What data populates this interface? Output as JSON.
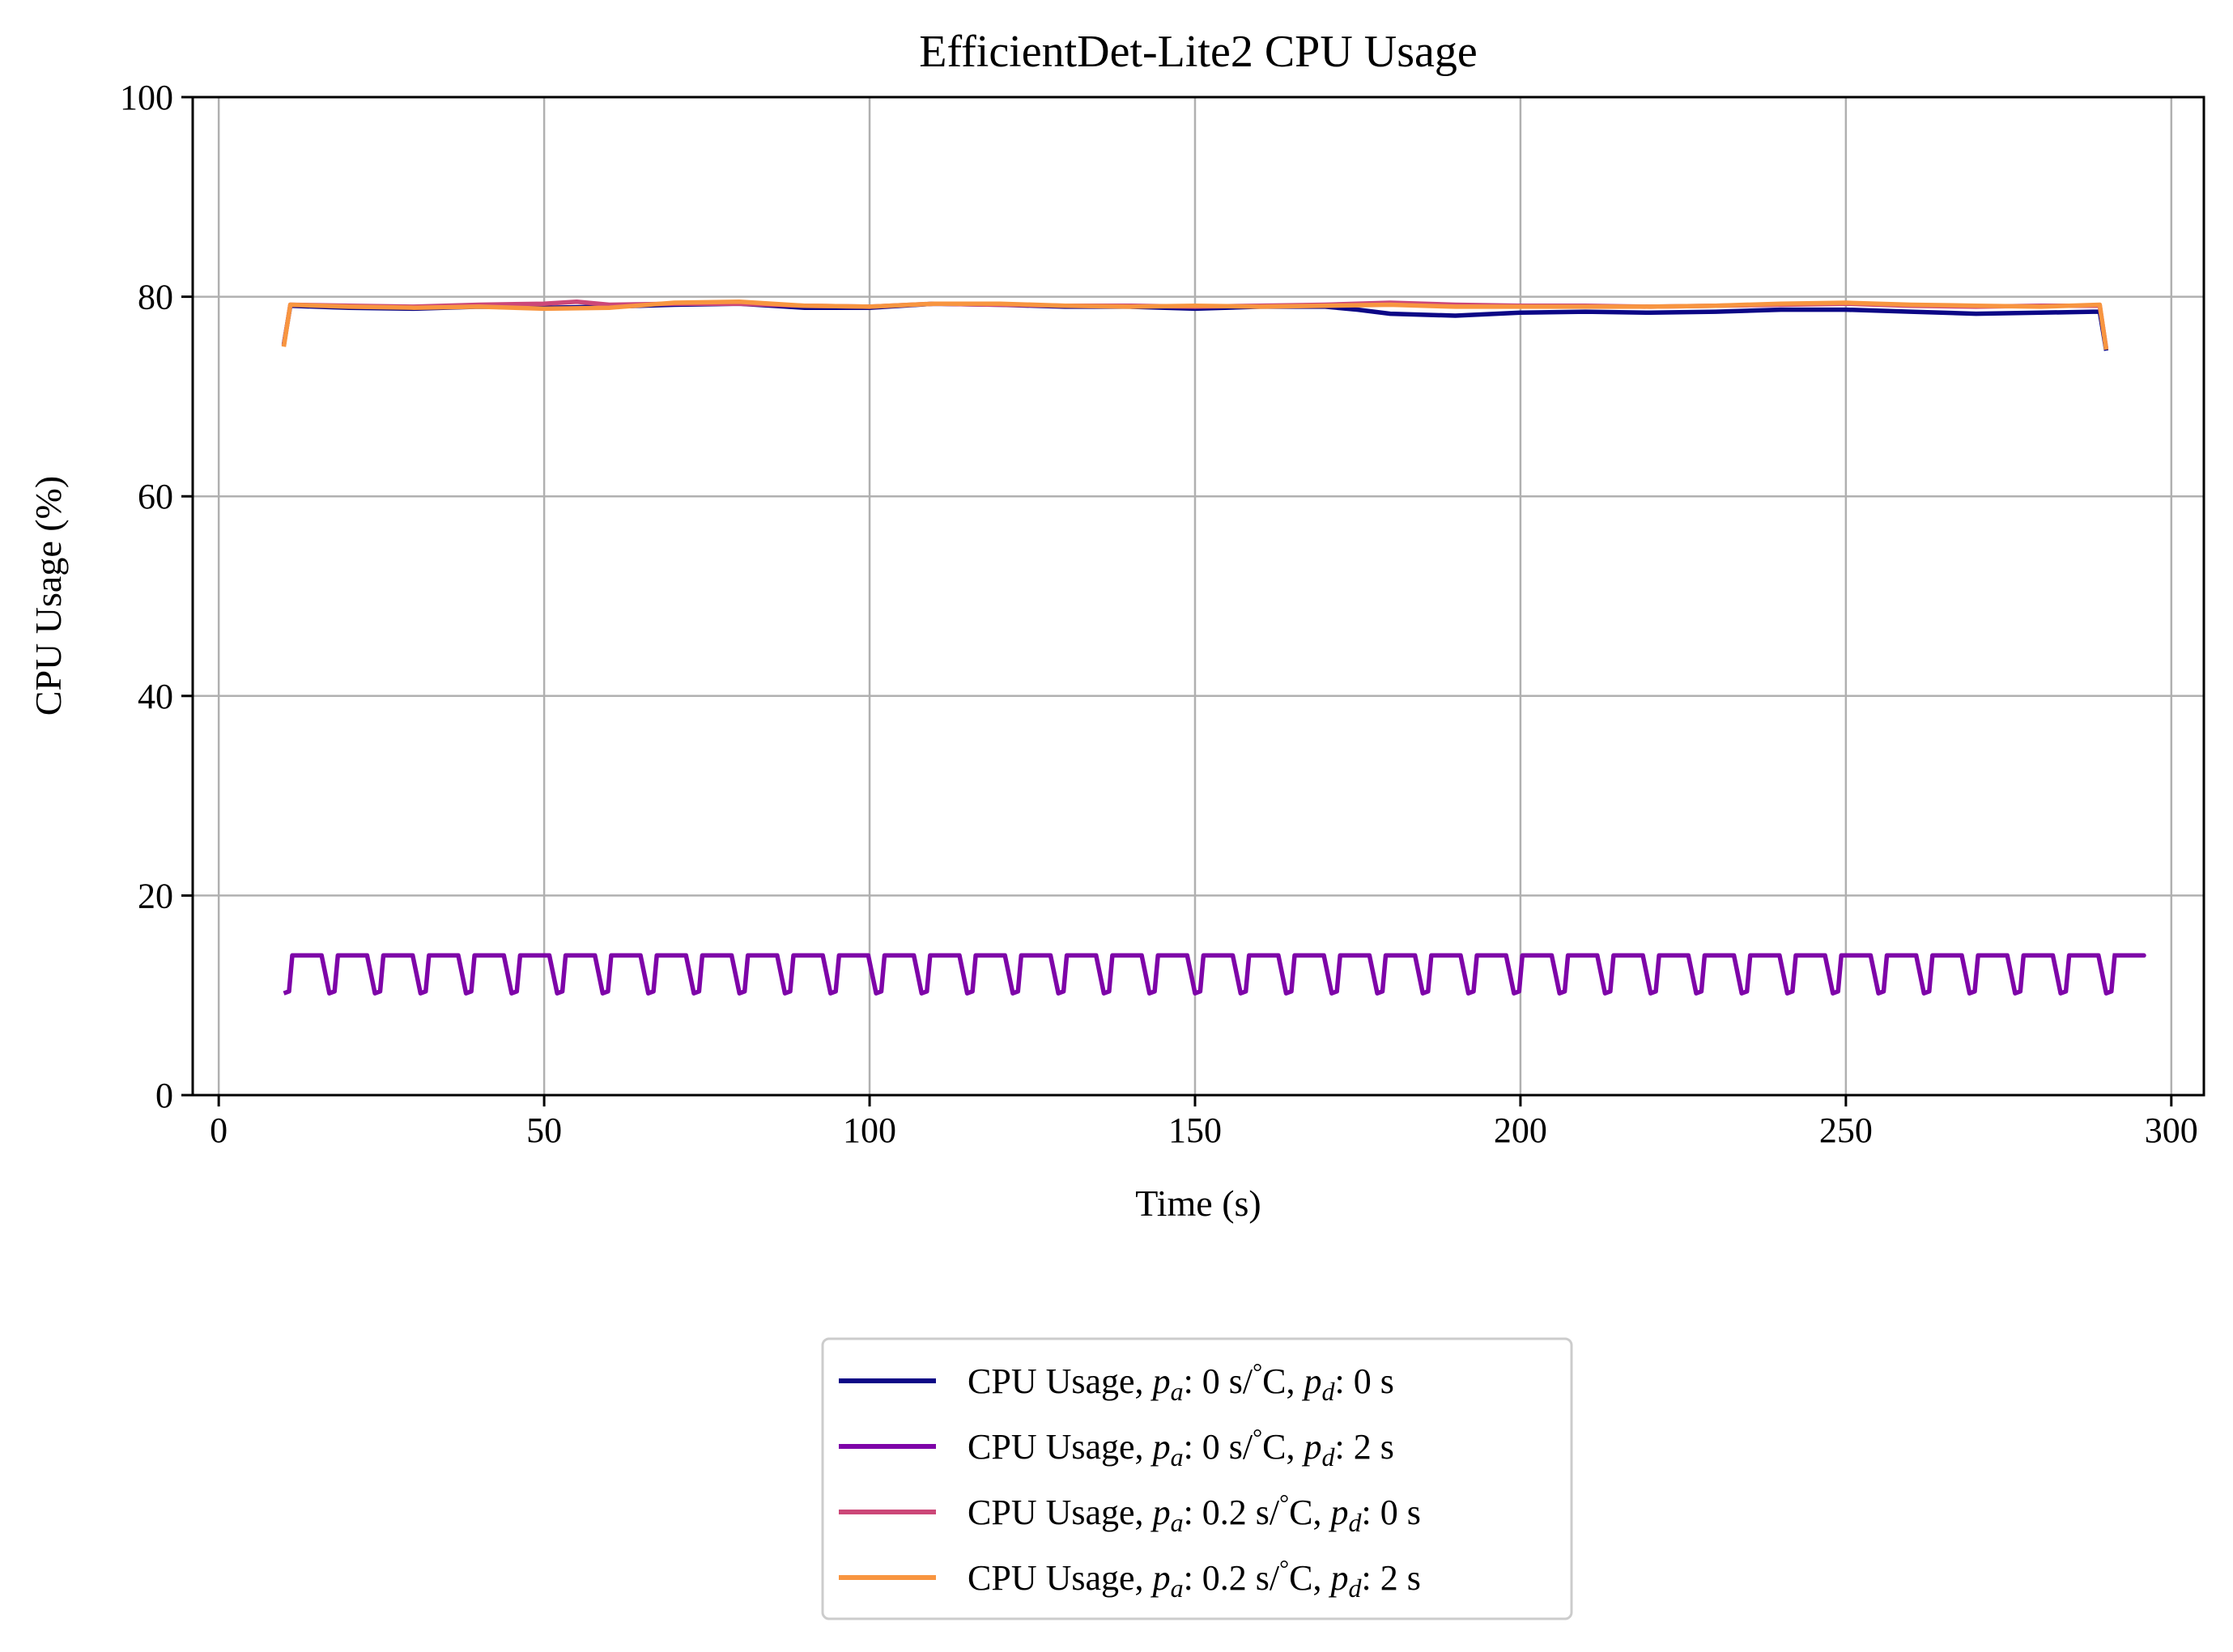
{
  "chart_data": {
    "type": "line",
    "title": "EfficientDet-Lite2 CPU Usage",
    "xlabel": "Time (s)",
    "ylabel": "CPU Usage (%)",
    "xlim": [
      -4,
      305
    ],
    "ylim": [
      0,
      100
    ],
    "xticks": [
      0,
      50,
      100,
      150,
      200,
      250,
      300
    ],
    "yticks": [
      0,
      20,
      40,
      60,
      80,
      100
    ],
    "grid": true,
    "legend_position": "below plot, centered",
    "series": [
      {
        "name": "CPU Usage, pa: 0 s/°C, pd: 0 s",
        "legend": {
          "prefix": "CPU Usage, ",
          "a": "0 s/",
          "b": "C, ",
          "c": ": 0 s"
        },
        "color": "#0c0786",
        "points": [
          [
            10,
            75.2
          ],
          [
            11,
            79.1
          ],
          [
            15,
            79.0
          ],
          [
            20,
            78.9
          ],
          [
            30,
            78.8
          ],
          [
            40,
            79.0
          ],
          [
            50,
            78.9
          ],
          [
            60,
            79.0
          ],
          [
            70,
            79.2
          ],
          [
            80,
            79.3
          ],
          [
            90,
            78.9
          ],
          [
            100,
            78.9
          ],
          [
            110,
            79.3
          ],
          [
            120,
            79.2
          ],
          [
            130,
            79.0
          ],
          [
            140,
            79.0
          ],
          [
            150,
            78.8
          ],
          [
            160,
            79.0
          ],
          [
            170,
            79.0
          ],
          [
            175,
            78.7
          ],
          [
            180,
            78.3
          ],
          [
            190,
            78.1
          ],
          [
            200,
            78.4
          ],
          [
            210,
            78.5
          ],
          [
            220,
            78.4
          ],
          [
            230,
            78.5
          ],
          [
            240,
            78.7
          ],
          [
            250,
            78.7
          ],
          [
            260,
            78.5
          ],
          [
            270,
            78.3
          ],
          [
            280,
            78.4
          ],
          [
            288,
            78.5
          ],
          [
            289,
            78.5
          ],
          [
            290,
            74.6
          ]
        ]
      },
      {
        "name": "CPU Usage, pa: 0 s/°C, pd: 2 s",
        "legend": {
          "prefix": "CPU Usage, ",
          "a": "0 s/",
          "b": "C, ",
          "c": ": 2 s"
        },
        "color": "#7e03a8",
        "pattern": {
          "start": 10,
          "end": 291,
          "period": 7,
          "high": 14.0,
          "low": 10.2
        }
      },
      {
        "name": "CPU Usage, pa: 0.2 s/°C, pd: 0 s",
        "legend": {
          "prefix": "CPU Usage, ",
          "a": "0.2 s/",
          "b": "C, ",
          "c": ": 0 s"
        },
        "color": "#cc4778",
        "points": [
          [
            10,
            75.1
          ],
          [
            11,
            79.2
          ],
          [
            20,
            79.1
          ],
          [
            30,
            79.0
          ],
          [
            40,
            79.2
          ],
          [
            50,
            79.3
          ],
          [
            55,
            79.5
          ],
          [
            60,
            79.2
          ],
          [
            70,
            79.3
          ],
          [
            80,
            79.3
          ],
          [
            90,
            79.1
          ],
          [
            100,
            79.0
          ],
          [
            110,
            79.3
          ],
          [
            120,
            79.2
          ],
          [
            130,
            79.1
          ],
          [
            140,
            79.1
          ],
          [
            150,
            79.0
          ],
          [
            160,
            79.1
          ],
          [
            170,
            79.2
          ],
          [
            180,
            79.4
          ],
          [
            190,
            79.2
          ],
          [
            200,
            79.1
          ],
          [
            210,
            79.1
          ],
          [
            220,
            79.0
          ],
          [
            230,
            79.1
          ],
          [
            240,
            79.2
          ],
          [
            250,
            79.3
          ],
          [
            260,
            79.1
          ],
          [
            270,
            79.0
          ],
          [
            280,
            79.1
          ],
          [
            289,
            79.1
          ],
          [
            290,
            74.8
          ]
        ]
      },
      {
        "name": "CPU Usage, pa: 0.2 s/°C, pd: 2 s",
        "legend": {
          "prefix": "CPU Usage, ",
          "a": "0.2 s/",
          "b": "C, ",
          "c": ": 2 s"
        },
        "color": "#f89540",
        "points": [
          [
            10,
            75.0
          ],
          [
            11,
            79.2
          ],
          [
            20,
            79.0
          ],
          [
            30,
            78.9
          ],
          [
            40,
            79.0
          ],
          [
            50,
            78.8
          ],
          [
            60,
            78.9
          ],
          [
            70,
            79.4
          ],
          [
            80,
            79.5
          ],
          [
            90,
            79.1
          ],
          [
            100,
            79.0
          ],
          [
            110,
            79.3
          ],
          [
            120,
            79.3
          ],
          [
            130,
            79.1
          ],
          [
            140,
            79.0
          ],
          [
            150,
            79.1
          ],
          [
            160,
            79.0
          ],
          [
            170,
            79.1
          ],
          [
            180,
            79.2
          ],
          [
            190,
            79.0
          ],
          [
            200,
            79.0
          ],
          [
            210,
            79.0
          ],
          [
            220,
            79.0
          ],
          [
            230,
            79.1
          ],
          [
            240,
            79.3
          ],
          [
            250,
            79.4
          ],
          [
            260,
            79.2
          ],
          [
            270,
            79.1
          ],
          [
            280,
            79.0
          ],
          [
            289,
            79.2
          ],
          [
            290,
            74.7
          ]
        ]
      }
    ]
  }
}
